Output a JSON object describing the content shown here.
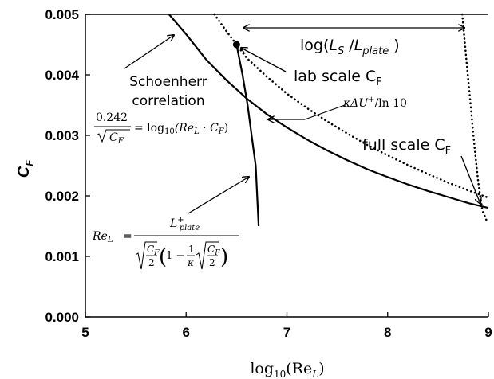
{
  "chart_data": {
    "type": "line",
    "xlabel": "log10(ReL)",
    "ylabel": "CF",
    "xlim": [
      5,
      9
    ],
    "ylim": [
      0,
      0.005
    ],
    "xticks": [
      "5",
      "6",
      "7",
      "8",
      "9"
    ],
    "yticks": [
      "0.000",
      "0.001",
      "0.002",
      "0.003",
      "0.004",
      "0.005"
    ],
    "grid": false,
    "series": [
      {
        "name": "Schoenherr correlation",
        "style": "solid",
        "x": [
          5.83,
          6.0,
          6.2,
          6.4,
          6.6,
          6.8,
          7.0,
          7.2,
          7.4,
          7.6,
          7.8,
          8.0,
          8.2,
          8.4,
          8.6,
          8.8,
          9.0
        ],
        "y": [
          0.005,
          0.00467,
          0.00425,
          0.00391,
          0.00361,
          0.00335,
          0.00313,
          0.00293,
          0.00275,
          0.00259,
          0.00244,
          0.00231,
          0.00219,
          0.00208,
          0.00198,
          0.00188,
          0.0018
        ]
      },
      {
        "name": "lab scale CF",
        "style": "dotted",
        "x": [
          6.28,
          6.4,
          6.5,
          6.6,
          6.8,
          7.0,
          7.2,
          7.4,
          7.6,
          7.8,
          8.0,
          8.2,
          8.4,
          8.6,
          8.8,
          9.0
        ],
        "y": [
          0.005,
          0.00472,
          0.0045,
          0.00428,
          0.00397,
          0.00369,
          0.00345,
          0.00323,
          0.00303,
          0.00284,
          0.00267,
          0.00251,
          0.00236,
          0.00222,
          0.00209,
          0.00197
        ]
      },
      {
        "name": "full scale CF",
        "style": "dotted",
        "x": [
          8.74,
          8.78,
          8.82,
          8.86,
          8.9,
          8.94,
          8.98
        ],
        "y": [
          0.005,
          0.00428,
          0.00356,
          0.00285,
          0.00221,
          0.00176,
          0.0016
        ]
      },
      {
        "name": "ReL",
        "style": "solid",
        "x": [
          6.5,
          6.56,
          6.61,
          6.65,
          6.69,
          6.72
        ],
        "y": [
          0.0045,
          0.004,
          0.0035,
          0.003,
          0.0025,
          0.0015
        ]
      }
    ],
    "annotations": {
      "schoenherr_line1": "Schoenherr",
      "schoenherr_line2": "correlation",
      "lab_scale": "lab scale C",
      "lab_scale_sub": "F",
      "full_scale": "full scale C",
      "full_scale_sub": "F",
      "log_ratio_open": "log(",
      "log_ratio_L1": "L",
      "log_ratio_sub1": "S",
      "log_ratio_slash": " /",
      "log_ratio_L2": "L",
      "log_ratio_sub2": "plate",
      "log_ratio_close": " )",
      "kappa_formula": "κΔU",
      "kappa_sup": "+",
      "kappa_rest": "/ln 10",
      "eq1_numerator": "0.242",
      "eq1_rhs": "= log",
      "eq1_rhs_sub": "10",
      "eq1_rhs_args": "(Re",
      "eq1_rhs_args_sub": "L",
      "eq1_rhs_tail": " · C",
      "eq1_rhs_tail_sub": "F",
      "eq1_rhs_close": ")",
      "eq1_denom": "C",
      "eq1_denom_sub": "F",
      "eq2_lhs": "Re",
      "eq2_lhs_sub": "L",
      "eq2_eq": "=",
      "eq2_num": "L",
      "eq2_num_sup": "+",
      "eq2_num_sub": "plate",
      "eq2_C1": "C",
      "eq2_C1_sub": "F",
      "eq2_two": "2",
      "eq2_one_minus": "1 −",
      "eq2_one": "1",
      "eq2_kappa": "κ",
      "eq2_C2": "C",
      "eq2_C2_sub": "F",
      "eq2_two2": "2"
    },
    "xlabel_parts": {
      "main": "log",
      "sub": "10",
      "args": "(Re",
      "args_sub": "L",
      "close": ")"
    },
    "ylabel_parts": {
      "main": "C",
      "sub": "F"
    }
  }
}
